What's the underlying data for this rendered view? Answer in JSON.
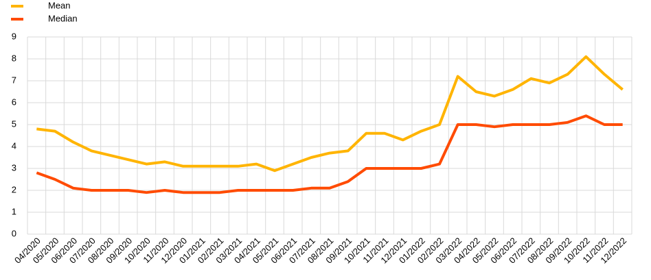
{
  "chart_data": {
    "type": "line",
    "categories": [
      "04/2020",
      "05/2020",
      "06/2020",
      "07/2020",
      "08/2020",
      "09/2020",
      "10/2020",
      "11/2020",
      "12/2020",
      "01/2021",
      "02/2021",
      "03/2021",
      "04/2021",
      "05/2021",
      "06/2021",
      "07/2021",
      "08/2021",
      "09/2021",
      "10/2021",
      "11/2021",
      "12/2021",
      "01/2022",
      "02/2022",
      "03/2022",
      "04/2022",
      "05/2022",
      "06/2022",
      "07/2022",
      "08/2022",
      "09/2022",
      "10/2022",
      "11/2022",
      "12/2022"
    ],
    "series": [
      {
        "name": "Mean",
        "color": "#ffb400",
        "values": [
          4.8,
          4.7,
          4.2,
          3.8,
          3.6,
          3.4,
          3.2,
          3.3,
          3.1,
          3.1,
          3.1,
          3.1,
          3.2,
          2.9,
          3.2,
          3.5,
          3.7,
          3.8,
          4.6,
          4.6,
          4.3,
          4.7,
          5.0,
          7.2,
          6.5,
          6.3,
          6.6,
          7.1,
          6.9,
          7.3,
          8.1,
          7.3,
          6.6
        ]
      },
      {
        "name": "Median",
        "color": "#ff4b00",
        "values": [
          2.8,
          2.5,
          2.1,
          2.0,
          2.0,
          2.0,
          1.9,
          2.0,
          1.9,
          1.9,
          1.9,
          2.0,
          2.0,
          2.0,
          2.0,
          2.1,
          2.1,
          2.4,
          3.0,
          3.0,
          3.0,
          3.0,
          3.2,
          5.0,
          5.0,
          4.9,
          5.0,
          5.0,
          5.0,
          5.1,
          5.4,
          5.0,
          5.0
        ]
      }
    ],
    "ylim": [
      0,
      9
    ],
    "yticks": [
      0,
      1,
      2,
      3,
      4,
      5,
      6,
      7,
      8,
      9
    ],
    "grid": true,
    "legend": "top-left"
  }
}
